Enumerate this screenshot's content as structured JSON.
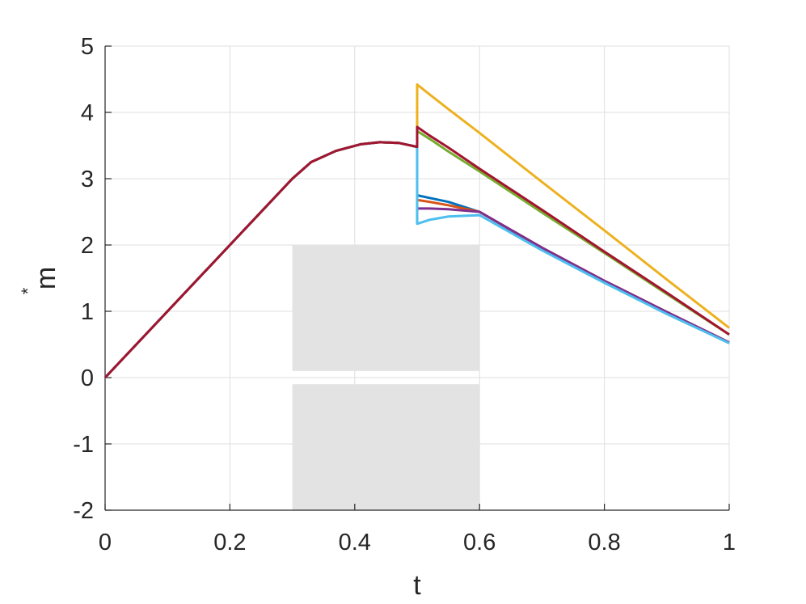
{
  "chart_data": {
    "type": "line",
    "xlabel": "t",
    "ylabel": {
      "base": "m",
      "superscript": "*"
    },
    "x": [
      0,
      0.1,
      0.2,
      0.3,
      0.33,
      0.37,
      0.41,
      0.44,
      0.47,
      0.5,
      0.5,
      0.52,
      0.55,
      0.6,
      0.7,
      0.8,
      0.9,
      1
    ],
    "series": [
      {
        "color": "#0072BD",
        "values": [
          0,
          1,
          2,
          3,
          3.25,
          3.42,
          3.52,
          3.55,
          3.54,
          3.48,
          2.75,
          2.71,
          2.65,
          2.5,
          1.95,
          1.45,
          0.98,
          0.52
        ]
      },
      {
        "color": "#D95319",
        "values": [
          0,
          1,
          2,
          3,
          3.25,
          3.42,
          3.52,
          3.55,
          3.54,
          3.48,
          2.68,
          2.65,
          2.6,
          2.5,
          1.96,
          1.46,
          0.99,
          0.53
        ]
      },
      {
        "color": "#EDB120",
        "values": [
          0,
          1,
          2,
          3,
          3.25,
          3.42,
          3.52,
          3.55,
          3.54,
          3.48,
          4.42,
          4.27,
          4.05,
          3.69,
          2.95,
          2.22,
          1.48,
          0.75
        ]
      },
      {
        "color": "#7E2F8E",
        "values": [
          0,
          1,
          2,
          3,
          3.25,
          3.42,
          3.52,
          3.55,
          3.54,
          3.48,
          2.55,
          2.55,
          2.54,
          2.5,
          1.96,
          1.46,
          0.99,
          0.53
        ]
      },
      {
        "color": "#77AC30",
        "values": [
          0,
          1,
          2,
          3,
          3.25,
          3.42,
          3.52,
          3.55,
          3.54,
          3.48,
          3.72,
          3.6,
          3.41,
          3.11,
          2.49,
          1.88,
          1.26,
          0.65
        ]
      },
      {
        "color": "#4DBEEE",
        "values": [
          0,
          1,
          2,
          3,
          3.25,
          3.42,
          3.52,
          3.55,
          3.54,
          3.48,
          2.32,
          2.38,
          2.43,
          2.45,
          1.92,
          1.43,
          0.96,
          0.52
        ]
      },
      {
        "color": "#A2142F",
        "values": [
          0,
          1,
          2,
          3,
          3.25,
          3.42,
          3.52,
          3.55,
          3.54,
          3.48,
          3.78,
          3.65,
          3.47,
          3.15,
          2.53,
          1.9,
          1.28,
          0.65
        ]
      }
    ],
    "regions": [
      {
        "color": "#e3e3e3",
        "x": [
          0.3,
          0.6
        ],
        "y": [
          0.1,
          2
        ]
      },
      {
        "color": "#e3e3e3",
        "x": [
          0.3,
          0.6
        ],
        "y": [
          -2,
          -0.1
        ]
      }
    ],
    "xlim": [
      0,
      1
    ],
    "xticks": [
      0,
      0.2,
      0.4,
      0.6,
      0.8,
      1
    ],
    "ylim": [
      -2,
      5
    ],
    "yticks": [
      -2,
      -1,
      0,
      1,
      2,
      3,
      4,
      5
    ],
    "grid": true
  }
}
